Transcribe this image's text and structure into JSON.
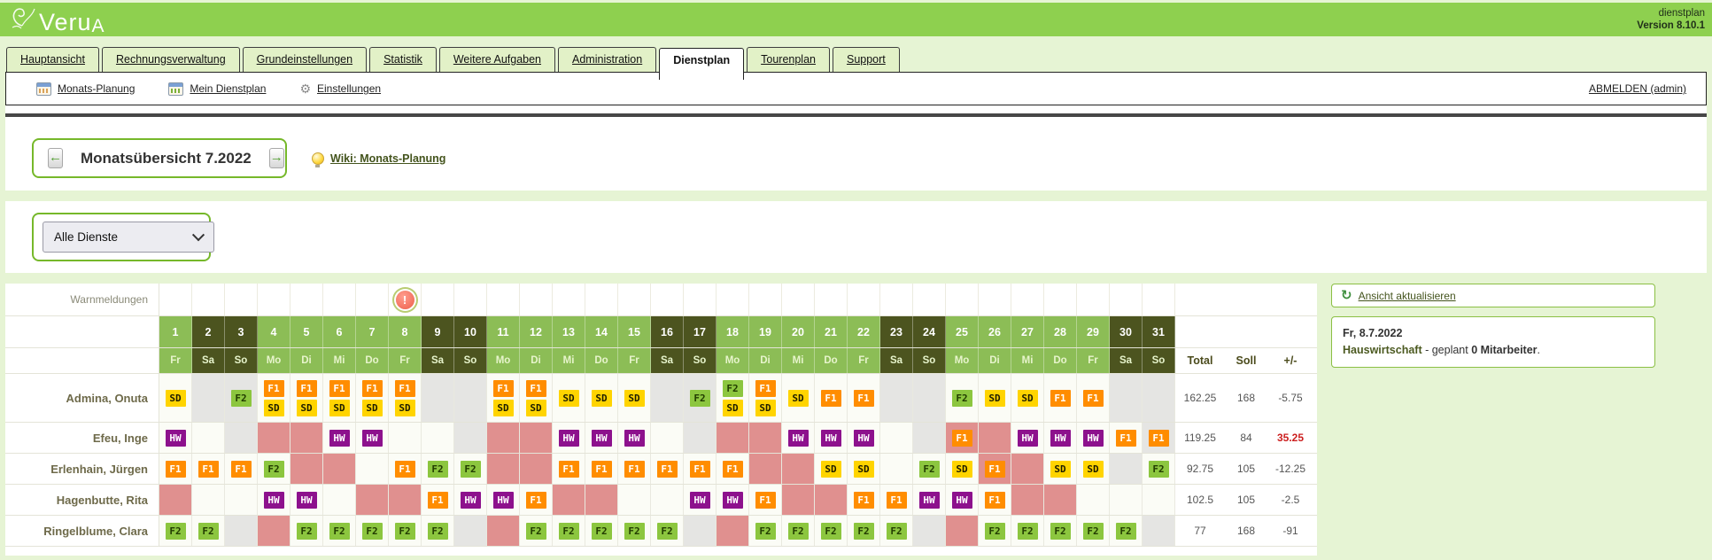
{
  "header": {
    "logo_text": "Veru",
    "logo_suffix": "A",
    "app_label": "dienstplan",
    "version": "Version 8.10.1"
  },
  "tabs": [
    {
      "label": "Hauptansicht",
      "active": false
    },
    {
      "label": "Rechnungsverwaltung",
      "active": false
    },
    {
      "label": "Grundeinstellungen",
      "active": false
    },
    {
      "label": "Statistik",
      "active": false
    },
    {
      "label": "Weitere Aufgaben",
      "active": false
    },
    {
      "label": "Administration",
      "active": false
    },
    {
      "label": "Dienstplan",
      "active": true
    },
    {
      "label": "Tourenplan",
      "active": false
    },
    {
      "label": "Support",
      "active": false
    }
  ],
  "toolbar": {
    "items": [
      {
        "label": "Monats-Planung",
        "icon": "calendar-icon"
      },
      {
        "label": "Mein Dienstplan",
        "icon": "calendar-icon"
      },
      {
        "label": "Einstellungen",
        "icon": "gear-icon"
      }
    ],
    "logout_label": "ABMELDEN (admin)"
  },
  "month_nav": {
    "title": "Monatsübersicht 7.2022",
    "wiki_label": "Wiki: Monats-Planung"
  },
  "filter": {
    "selected": "Alle Dienste"
  },
  "roster": {
    "warnings_label": "Warnmeldungen",
    "warning_day": 8,
    "totals_headers": [
      "Total",
      "Soll",
      "+/-"
    ],
    "shift_types": {
      "SD": {
        "bg": "#ffd400",
        "fg": "#1c1c00"
      },
      "F1": {
        "bg": "#ff8d00",
        "fg": "#ffffff"
      },
      "F2": {
        "bg": "#8cc63f",
        "fg": "#223c00"
      },
      "HW": {
        "bg": "#8d118d",
        "fg": "#ffffff"
      }
    },
    "colors": {
      "weekend_header": "#4c541f",
      "weekday_header": "#8cbd56",
      "absence_pink": "#e0908f",
      "weekend_gray": "#e5e5e3",
      "warning_red": "#ee5f4c"
    },
    "days": [
      {
        "n": "1",
        "w": "Fr"
      },
      {
        "n": "2",
        "w": "Sa"
      },
      {
        "n": "3",
        "w": "So"
      },
      {
        "n": "4",
        "w": "Mo"
      },
      {
        "n": "5",
        "w": "Di"
      },
      {
        "n": "6",
        "w": "Mi"
      },
      {
        "n": "7",
        "w": "Do"
      },
      {
        "n": "8",
        "w": "Fr"
      },
      {
        "n": "9",
        "w": "Sa"
      },
      {
        "n": "10",
        "w": "So"
      },
      {
        "n": "11",
        "w": "Mo"
      },
      {
        "n": "12",
        "w": "Di"
      },
      {
        "n": "13",
        "w": "Mi"
      },
      {
        "n": "14",
        "w": "Do"
      },
      {
        "n": "15",
        "w": "Fr"
      },
      {
        "n": "16",
        "w": "Sa"
      },
      {
        "n": "17",
        "w": "So"
      },
      {
        "n": "18",
        "w": "Mo"
      },
      {
        "n": "19",
        "w": "Di"
      },
      {
        "n": "20",
        "w": "Mi"
      },
      {
        "n": "21",
        "w": "Do"
      },
      {
        "n": "22",
        "w": "Fr"
      },
      {
        "n": "23",
        "w": "Sa"
      },
      {
        "n": "24",
        "w": "So"
      },
      {
        "n": "25",
        "w": "Mo"
      },
      {
        "n": "26",
        "w": "Di"
      },
      {
        "n": "27",
        "w": "Mi"
      },
      {
        "n": "28",
        "w": "Do"
      },
      {
        "n": "29",
        "w": "Fr"
      },
      {
        "n": "30",
        "w": "Sa"
      },
      {
        "n": "31",
        "w": "So"
      }
    ],
    "employees": [
      {
        "name": "Admina, Onuta",
        "total": "162.25",
        "soll": "168",
        "diff": "-5.75",
        "diff_red": false,
        "cells": [
          {
            "s": [
              "SD"
            ]
          },
          {
            "b": "g"
          },
          {
            "s": [
              "F2"
            ],
            "b": "g"
          },
          {
            "s": [
              "F1",
              "SD"
            ]
          },
          {
            "s": [
              "F1",
              "SD"
            ]
          },
          {
            "s": [
              "F1",
              "SD"
            ]
          },
          {
            "s": [
              "F1",
              "SD"
            ]
          },
          {
            "s": [
              "F1",
              "SD"
            ]
          },
          {
            "b": "g"
          },
          {
            "b": "g"
          },
          {
            "s": [
              "F1",
              "SD"
            ]
          },
          {
            "s": [
              "F1",
              "SD"
            ]
          },
          {
            "s": [
              "SD"
            ]
          },
          {
            "s": [
              "SD"
            ]
          },
          {
            "s": [
              "SD"
            ]
          },
          {
            "b": "g"
          },
          {
            "s": [
              "F2"
            ],
            "b": "g"
          },
          {
            "s": [
              "F2",
              "SD"
            ]
          },
          {
            "s": [
              "F1",
              "SD"
            ]
          },
          {
            "s": [
              "SD"
            ]
          },
          {
            "s": [
              "F1"
            ]
          },
          {
            "s": [
              "F1"
            ]
          },
          {
            "b": "g"
          },
          {
            "b": "g"
          },
          {
            "s": [
              "F2"
            ]
          },
          {
            "s": [
              "SD"
            ]
          },
          {
            "s": [
              "SD"
            ]
          },
          {
            "s": [
              "F1"
            ]
          },
          {
            "s": [
              "F1"
            ]
          },
          {
            "b": "g"
          },
          {
            "b": "g"
          }
        ]
      },
      {
        "name": "Efeu, Inge",
        "total": "119.25",
        "soll": "84",
        "diff": "35.25",
        "diff_red": true,
        "cells": [
          {
            "s": [
              "HW"
            ]
          },
          {},
          {
            "b": "g"
          },
          {
            "b": "p"
          },
          {
            "b": "p"
          },
          {
            "s": [
              "HW"
            ]
          },
          {
            "s": [
              "HW"
            ]
          },
          {},
          {},
          {
            "b": "g"
          },
          {
            "b": "p"
          },
          {
            "b": "p"
          },
          {
            "s": [
              "HW"
            ]
          },
          {
            "s": [
              "HW"
            ]
          },
          {
            "s": [
              "HW"
            ]
          },
          {},
          {
            "b": "g"
          },
          {
            "b": "p"
          },
          {
            "b": "p"
          },
          {
            "s": [
              "HW"
            ]
          },
          {
            "s": [
              "HW"
            ]
          },
          {
            "s": [
              "HW"
            ]
          },
          {},
          {
            "b": "g"
          },
          {
            "s": [
              "F1"
            ],
            "b": "p"
          },
          {
            "b": "p"
          },
          {
            "s": [
              "HW"
            ]
          },
          {
            "s": [
              "HW"
            ]
          },
          {
            "s": [
              "HW"
            ]
          },
          {
            "s": [
              "F1"
            ]
          },
          {
            "s": [
              "F1"
            ],
            "b": "g"
          }
        ]
      },
      {
        "name": "Erlenhain, Jürgen",
        "total": "92.75",
        "soll": "105",
        "diff": "-12.25",
        "diff_red": false,
        "cells": [
          {
            "s": [
              "F1"
            ]
          },
          {
            "s": [
              "F1"
            ]
          },
          {
            "s": [
              "F1"
            ]
          },
          {
            "s": [
              "F2"
            ]
          },
          {
            "b": "p"
          },
          {
            "b": "p"
          },
          {},
          {
            "s": [
              "F1"
            ]
          },
          {
            "s": [
              "F2"
            ]
          },
          {
            "s": [
              "F2"
            ]
          },
          {
            "b": "p"
          },
          {
            "b": "p"
          },
          {
            "s": [
              "F1"
            ]
          },
          {
            "s": [
              "F1"
            ]
          },
          {
            "s": [
              "F1"
            ]
          },
          {
            "s": [
              "F1"
            ]
          },
          {
            "s": [
              "F1"
            ]
          },
          {
            "s": [
              "F1"
            ]
          },
          {
            "b": "p"
          },
          {
            "b": "p"
          },
          {
            "s": [
              "SD"
            ]
          },
          {
            "s": [
              "SD"
            ]
          },
          {},
          {
            "s": [
              "F2"
            ]
          },
          {
            "s": [
              "SD"
            ]
          },
          {
            "s": [
              "F1"
            ],
            "b": "p"
          },
          {
            "b": "p"
          },
          {
            "s": [
              "SD"
            ]
          },
          {
            "s": [
              "SD"
            ]
          },
          {
            "b": "g"
          },
          {
            "s": [
              "F2"
            ]
          }
        ]
      },
      {
        "name": "Hagenbutte, Rita",
        "total": "102.5",
        "soll": "105",
        "diff": "-2.5",
        "diff_red": false,
        "cells": [
          {
            "b": "p"
          },
          {},
          {},
          {
            "s": [
              "HW"
            ]
          },
          {
            "s": [
              "HW"
            ]
          },
          {},
          {
            "b": "p"
          },
          {
            "b": "p"
          },
          {
            "s": [
              "F1"
            ]
          },
          {
            "s": [
              "HW"
            ]
          },
          {
            "s": [
              "HW"
            ]
          },
          {
            "s": [
              "F1"
            ]
          },
          {
            "b": "p"
          },
          {
            "b": "p"
          },
          {},
          {},
          {
            "s": [
              "HW"
            ]
          },
          {
            "s": [
              "HW"
            ]
          },
          {
            "s": [
              "F1"
            ]
          },
          {
            "b": "p"
          },
          {
            "b": "p"
          },
          {
            "s": [
              "F1"
            ]
          },
          {
            "s": [
              "F1"
            ]
          },
          {
            "s": [
              "HW"
            ]
          },
          {
            "s": [
              "HW"
            ]
          },
          {
            "s": [
              "F1"
            ]
          },
          {
            "b": "p"
          },
          {
            "b": "p"
          },
          {},
          {},
          {}
        ]
      },
      {
        "name": "Ringelblume, Clara",
        "total": "77",
        "soll": "168",
        "diff": "-91",
        "diff_red": false,
        "cells": [
          {
            "s": [
              "F2"
            ]
          },
          {
            "s": [
              "F2"
            ]
          },
          {
            "b": "g"
          },
          {
            "b": "p"
          },
          {
            "s": [
              "F2"
            ]
          },
          {
            "s": [
              "F2"
            ]
          },
          {
            "s": [
              "F2"
            ]
          },
          {
            "s": [
              "F2"
            ]
          },
          {
            "s": [
              "F2"
            ]
          },
          {
            "b": "g"
          },
          {
            "b": "p"
          },
          {
            "s": [
              "F2"
            ]
          },
          {
            "s": [
              "F2"
            ]
          },
          {
            "s": [
              "F2"
            ]
          },
          {
            "s": [
              "F2"
            ]
          },
          {
            "s": [
              "F2"
            ]
          },
          {
            "b": "g"
          },
          {
            "b": "p"
          },
          {
            "s": [
              "F2"
            ]
          },
          {
            "s": [
              "F2"
            ]
          },
          {
            "s": [
              "F2"
            ]
          },
          {
            "s": [
              "F2"
            ]
          },
          {
            "s": [
              "F2"
            ]
          },
          {
            "b": "g"
          },
          {
            "b": "p"
          },
          {
            "s": [
              "F2"
            ]
          },
          {
            "s": [
              "F2"
            ]
          },
          {
            "s": [
              "F2"
            ]
          },
          {
            "s": [
              "F2"
            ]
          },
          {
            "s": [
              "F2"
            ]
          },
          {
            "b": "g"
          }
        ]
      }
    ]
  },
  "side_panel": {
    "refresh_label": "Ansicht aktualisieren",
    "info_date": "Fr, 8.7.2022",
    "info_department": "Hauswirtschaft",
    "info_middle": " - geplant ",
    "info_count": "0 Mitarbeiter",
    "info_tail": "."
  }
}
